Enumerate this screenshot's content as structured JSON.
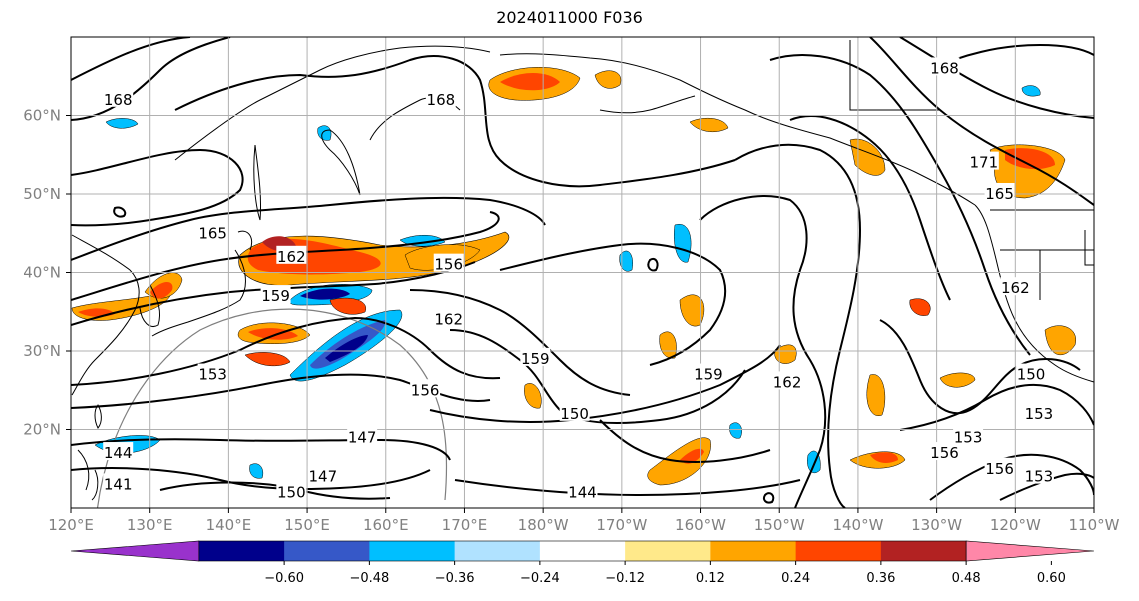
{
  "title": "2024011000 F036",
  "map": {
    "lon_range": [
      120,
      250
    ],
    "lat_range": [
      10,
      70
    ],
    "lon_ticks": [
      "120°E",
      "130°E",
      "140°E",
      "150°E",
      "160°E",
      "170°E",
      "180°W",
      "170°W",
      "160°W",
      "150°W",
      "140°W",
      "130°W",
      "120°W",
      "110°W"
    ],
    "lat_ticks": [
      {
        "lat": 20,
        "label": "20°N"
      },
      {
        "lat": 30,
        "label": "30°N"
      },
      {
        "lat": 40,
        "label": "40°N"
      },
      {
        "lat": 50,
        "label": "50°N"
      },
      {
        "lat": 60,
        "label": "60°N"
      }
    ],
    "grid": true,
    "contour_labels": [
      {
        "text": "168",
        "lon": 126,
        "lat": 62
      },
      {
        "text": "168",
        "lon": 167,
        "lat": 62
      },
      {
        "text": "168",
        "lon": 231,
        "lat": 66
      },
      {
        "text": "171",
        "lon": 236,
        "lat": 54
      },
      {
        "text": "165",
        "lon": 238,
        "lat": 50
      },
      {
        "text": "165",
        "lon": 138,
        "lat": 45
      },
      {
        "text": "162",
        "lon": 148,
        "lat": 42
      },
      {
        "text": "156",
        "lon": 168,
        "lat": 41
      },
      {
        "text": "159",
        "lon": 146,
        "lat": 37
      },
      {
        "text": "162",
        "lon": 168,
        "lat": 34
      },
      {
        "text": "159",
        "lon": 179,
        "lat": 29
      },
      {
        "text": "153",
        "lon": 138,
        "lat": 27
      },
      {
        "text": "156",
        "lon": 165,
        "lat": 25
      },
      {
        "text": "159",
        "lon": 201,
        "lat": 27
      },
      {
        "text": "162",
        "lon": 211,
        "lat": 26
      },
      {
        "text": "150",
        "lon": 242,
        "lat": 27
      },
      {
        "text": "153",
        "lon": 243,
        "lat": 22
      },
      {
        "text": "156",
        "lon": 231,
        "lat": 17
      },
      {
        "text": "153",
        "lon": 234,
        "lat": 19
      },
      {
        "text": "150",
        "lon": 184,
        "lat": 22
      },
      {
        "text": "147",
        "lon": 157,
        "lat": 19
      },
      {
        "text": "147",
        "lon": 152,
        "lat": 14
      },
      {
        "text": "150",
        "lon": 148,
        "lat": 12
      },
      {
        "text": "144",
        "lon": 126,
        "lat": 17
      },
      {
        "text": "141",
        "lon": 126,
        "lat": 13
      },
      {
        "text": "144",
        "lon": 185,
        "lat": 12
      },
      {
        "text": "156",
        "lon": 238,
        "lat": 15
      },
      {
        "text": "153",
        "lon": 243,
        "lat": 14
      },
      {
        "text": "162",
        "lon": 240,
        "lat": 38
      }
    ]
  },
  "colorbar": {
    "colors": [
      "#9932cc",
      "#00008b",
      "#3658c8",
      "#00bfff",
      "#b0e2ff",
      "#ffffff",
      "#ffe98a",
      "#ffa500",
      "#ff4500",
      "#b22222",
      "#ff87a8"
    ],
    "ticks": [
      "−0.60",
      "−0.48",
      "−0.36",
      "−0.24",
      "−0.12",
      "0.12",
      "0.24",
      "0.36",
      "0.48",
      "0.60"
    ]
  },
  "colors": {
    "tick_label": "#808080",
    "contour": "#000000",
    "grid": "#b0b0b0"
  }
}
